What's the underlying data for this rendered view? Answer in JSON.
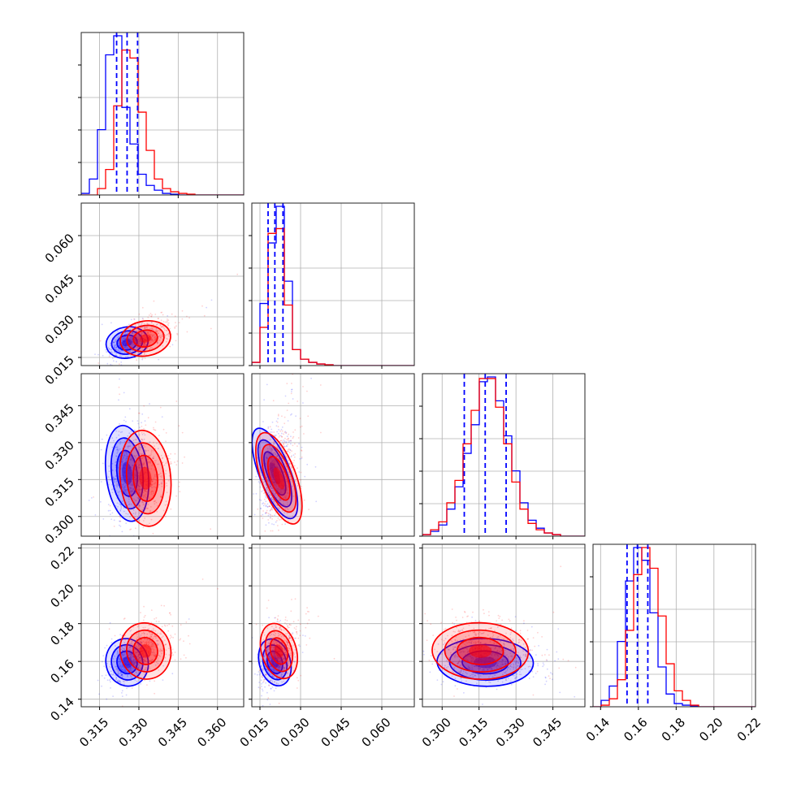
{
  "chart_data": {
    "type": "corner",
    "title": "",
    "grid": true,
    "parameters": [
      {
        "range": [
          0.308,
          0.37
        ],
        "ticks": [
          0.315,
          0.33,
          0.345,
          0.36
        ],
        "tick_labels": [
          "0.315",
          "0.330",
          "0.345",
          "0.360"
        ]
      },
      {
        "range": [
          0.012,
          0.072
        ],
        "ticks": [
          0.015,
          0.03,
          0.045,
          0.06
        ],
        "tick_labels": [
          "0.015",
          "0.030",
          "0.045",
          "0.060"
        ]
      },
      {
        "range": [
          0.292,
          0.358
        ],
        "ticks": [
          0.3,
          0.315,
          0.33,
          0.345
        ],
        "tick_labels": [
          "0.300",
          "0.315",
          "0.330",
          "0.345"
        ]
      },
      {
        "range": [
          0.136,
          0.222
        ],
        "ticks": [
          0.14,
          0.16,
          0.18,
          0.2,
          0.22
        ],
        "tick_labels": [
          "0.14",
          "0.16",
          "0.18",
          "0.20",
          "0.22"
        ]
      }
    ],
    "series": [
      {
        "color": "#0000ff",
        "means": [
          0.3255,
          0.0205,
          0.3175,
          0.1595
        ],
        "sigmas": [
          0.0035,
          0.0025,
          0.0085,
          0.0055
        ],
        "quantiles": [
          [
            0.3215,
            0.3255,
            0.3295
          ],
          [
            0.018,
            0.0205,
            0.0235
          ],
          [
            0.309,
            0.3175,
            0.326
          ],
          [
            0.154,
            0.1595,
            0.165
          ]
        ],
        "histograms": [
          [
            0.01,
            0.1,
            0.41,
            0.88,
            1.0,
            0.55,
            0.32,
            0.13,
            0.06,
            0.03,
            0.01,
            0.005,
            0,
            0,
            0,
            0,
            0,
            0,
            0,
            0
          ],
          [
            0.02,
            0.39,
            0.77,
            1.0,
            0.53,
            0.1,
            0.04,
            0.02,
            0.01,
            0.005,
            0,
            0,
            0,
            0,
            0,
            0,
            0,
            0,
            0,
            0
          ],
          [
            0.01,
            0.03,
            0.07,
            0.17,
            0.31,
            0.52,
            0.7,
            0.97,
            1.0,
            0.85,
            0.63,
            0.41,
            0.21,
            0.1,
            0.05,
            0.02,
            0.01,
            0,
            0,
            0
          ],
          [
            0,
            0.04,
            0.13,
            0.41,
            0.79,
            1.0,
            0.92,
            0.59,
            0.25,
            0.08,
            0.02,
            0.01,
            0.005,
            0,
            0,
            0,
            0,
            0,
            0,
            0
          ]
        ]
      },
      {
        "color": "#ff0000",
        "means": [
          0.3325,
          0.022,
          0.3155,
          0.1655
        ],
        "sigmas": [
          0.0042,
          0.0028,
          0.0085,
          0.0065
        ],
        "histograms": [
          [
            0,
            0,
            0.04,
            0.16,
            0.56,
            0.91,
            0.86,
            0.52,
            0.28,
            0.1,
            0.04,
            0.02,
            0.01,
            0.005,
            0,
            0,
            0,
            0,
            0,
            0
          ],
          [
            0.02,
            0.24,
            0.83,
            0.86,
            0.38,
            0.1,
            0.04,
            0.02,
            0.01,
            0.005,
            0,
            0,
            0,
            0,
            0,
            0,
            0,
            0,
            0,
            0
          ],
          [
            0.01,
            0.04,
            0.09,
            0.21,
            0.35,
            0.58,
            0.79,
            0.99,
            0.99,
            0.81,
            0.58,
            0.34,
            0.17,
            0.08,
            0.04,
            0.02,
            0.01,
            0,
            0,
            0
          ],
          [
            0,
            0.01,
            0.05,
            0.17,
            0.48,
            0.83,
            1.0,
            0.87,
            0.57,
            0.27,
            0.1,
            0.04,
            0.01,
            0,
            0,
            0,
            0,
            0,
            0,
            0
          ]
        ]
      }
    ]
  }
}
